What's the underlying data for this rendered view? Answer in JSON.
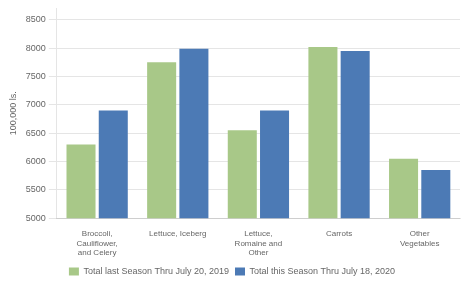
{
  "chart_data": {
    "type": "bar",
    "categories": [
      "Broccoli,\nCauliflower,\nand Celery",
      "Lettuce, Iceberg",
      "Lettuce,\nRomaine and\nOther",
      "Carrots",
      "Other\nVegetables"
    ],
    "series": [
      {
        "name": "Total last Season Thru July 20, 2019",
        "color": "#a8c888",
        "values": [
          6300,
          7750,
          6550,
          8020,
          6050
        ]
      },
      {
        "name": "Total this Season Thru July 18, 2020",
        "color": "#4c7ab5",
        "values": [
          6900,
          7990,
          6900,
          7950,
          5850
        ]
      }
    ],
    "ylabel": "100,000 ls.",
    "ylim": [
      5000,
      8700
    ],
    "yticks": [
      5000,
      5500,
      6000,
      6500,
      7000,
      7500,
      8000,
      8500
    ],
    "grid": true,
    "legend": "bottom"
  }
}
